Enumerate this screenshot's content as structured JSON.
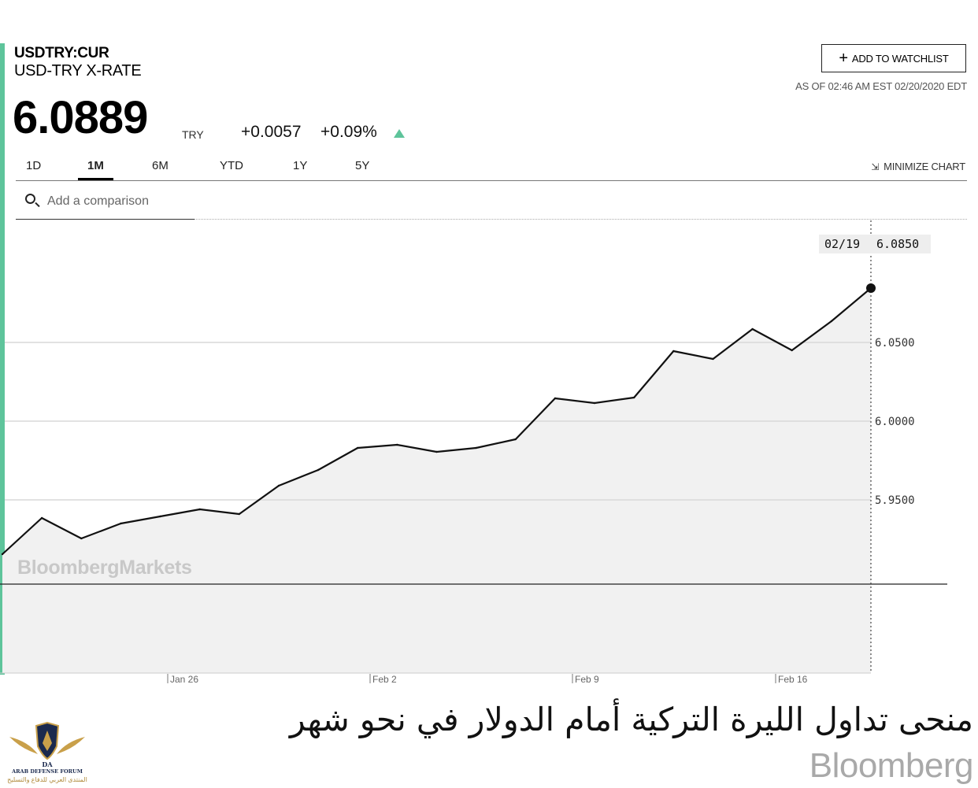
{
  "header": {
    "ticker": "USDTRY:CUR",
    "name": "USD-TRY X-RATE",
    "price": "6.0889",
    "currency": "TRY",
    "change": "+0.0057",
    "change_pct": "+0.09%",
    "change_direction": "up",
    "watchlist_label": "ADD TO WATCHLIST",
    "as_of": "AS OF 02:46 AM EST 02/20/2020 EDT"
  },
  "tabs": [
    {
      "label": "1D",
      "active": false
    },
    {
      "label": "1M",
      "active": true
    },
    {
      "label": "6M",
      "active": false
    },
    {
      "label": "YTD",
      "active": false
    },
    {
      "label": "1Y",
      "active": false
    },
    {
      "label": "5Y",
      "active": false
    }
  ],
  "minimize_label": "MINIMIZE CHART",
  "search": {
    "placeholder": "Add a comparison"
  },
  "tooltip": {
    "date": "02/19",
    "value": "6.0850"
  },
  "watermark": "BloombergMarkets",
  "caption": {
    "arabic": "منحى تداول الليرة التركية أمام الدولار في نحو شهر",
    "logo": "Bloomberg"
  },
  "forum_logo": {
    "en": "ARAB DEFENSE FORUM",
    "ar": "المنتدى العربي للدفاع والتسليح"
  },
  "colors": {
    "accent": "#5ec49b",
    "line": "#111111",
    "area": "#f1f1f1"
  },
  "chart_data": {
    "type": "area",
    "x": [
      "Jan 20",
      "Jan 21",
      "Jan 22",
      "Jan 23",
      "Jan 24",
      "Jan 27",
      "Jan 28",
      "Jan 29",
      "Jan 30",
      "Jan 31",
      "Feb 3",
      "Feb 4",
      "Feb 5",
      "Feb 6",
      "Feb 7",
      "Feb 10",
      "Feb 11",
      "Feb 12",
      "Feb 13",
      "Feb 14",
      "Feb 17",
      "Feb 18",
      "Feb 19"
    ],
    "series": [
      {
        "values": [
          5.9155,
          5.9385,
          5.9255,
          5.935,
          5.9395,
          5.944,
          5.941,
          5.959,
          5.969,
          5.983,
          5.985,
          5.9805,
          5.983,
          5.9885,
          6.0145,
          6.0115,
          6.015,
          6.0445,
          6.0395,
          6.0585,
          6.045,
          6.0635,
          6.0845
        ]
      }
    ],
    "x_ticks": [
      "Jan 26",
      "Feb 2",
      "Feb 9",
      "Feb 16"
    ],
    "y_ticks": [
      "6.0500",
      "6.0000",
      "5.9500"
    ],
    "ylim": [
      5.9,
      6.1
    ],
    "grid": true
  }
}
